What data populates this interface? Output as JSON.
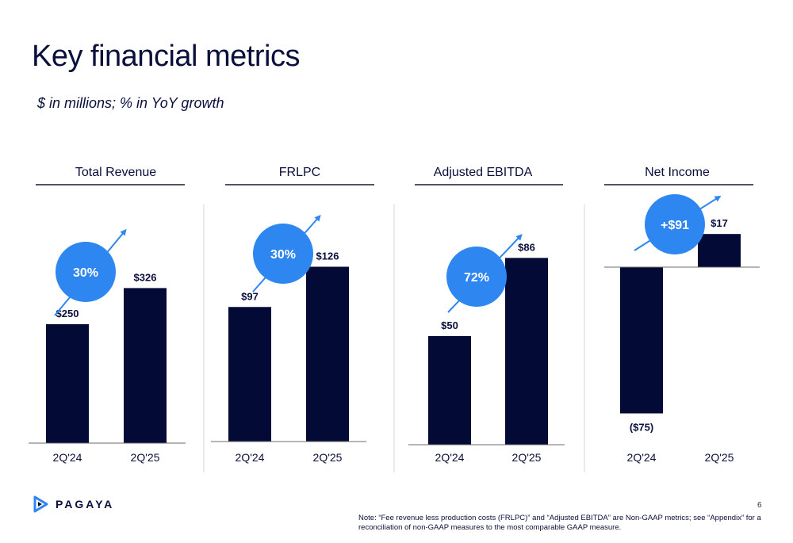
{
  "title": "Key financial metrics",
  "subtitle": "$ in millions; % in YoY growth",
  "colors": {
    "bar": "#020a35",
    "accent": "#2e86f0",
    "text": "#0a0f3c",
    "divider": "#d4d4d4"
  },
  "chart_data": [
    {
      "type": "bar",
      "title": "Total Revenue",
      "categories": [
        "2Q'24",
        "2Q'25"
      ],
      "values": [
        250,
        326
      ],
      "value_labels": [
        "$250",
        "$326"
      ],
      "growth_label": "30%"
    },
    {
      "type": "bar",
      "title": "FRLPC",
      "categories": [
        "2Q'24",
        "2Q'25"
      ],
      "values": [
        97,
        126
      ],
      "value_labels": [
        "$97",
        "$126"
      ],
      "growth_label": "30%"
    },
    {
      "type": "bar",
      "title": "Adjusted EBITDA",
      "categories": [
        "2Q'24",
        "2Q'25"
      ],
      "values": [
        50,
        86
      ],
      "value_labels": [
        "$50",
        "$86"
      ],
      "growth_label": "72%"
    },
    {
      "type": "bar",
      "title": "Net Income",
      "categories": [
        "2Q'24",
        "2Q'25"
      ],
      "values": [
        -75,
        17
      ],
      "value_labels": [
        "($75)",
        "$17"
      ],
      "growth_label": "+$91"
    }
  ],
  "logo": {
    "name": "PAGAYA",
    "icon": "pagaya-play-icon"
  },
  "page_number": "6",
  "footnote": "Note: “Fee revenue less production costs (FRLPC)” and “Adjusted EBITDA” are Non-GAAP metrics; see “Appendix” for a reconciliation of non-GAAP measures to the most comparable GAAP measure."
}
